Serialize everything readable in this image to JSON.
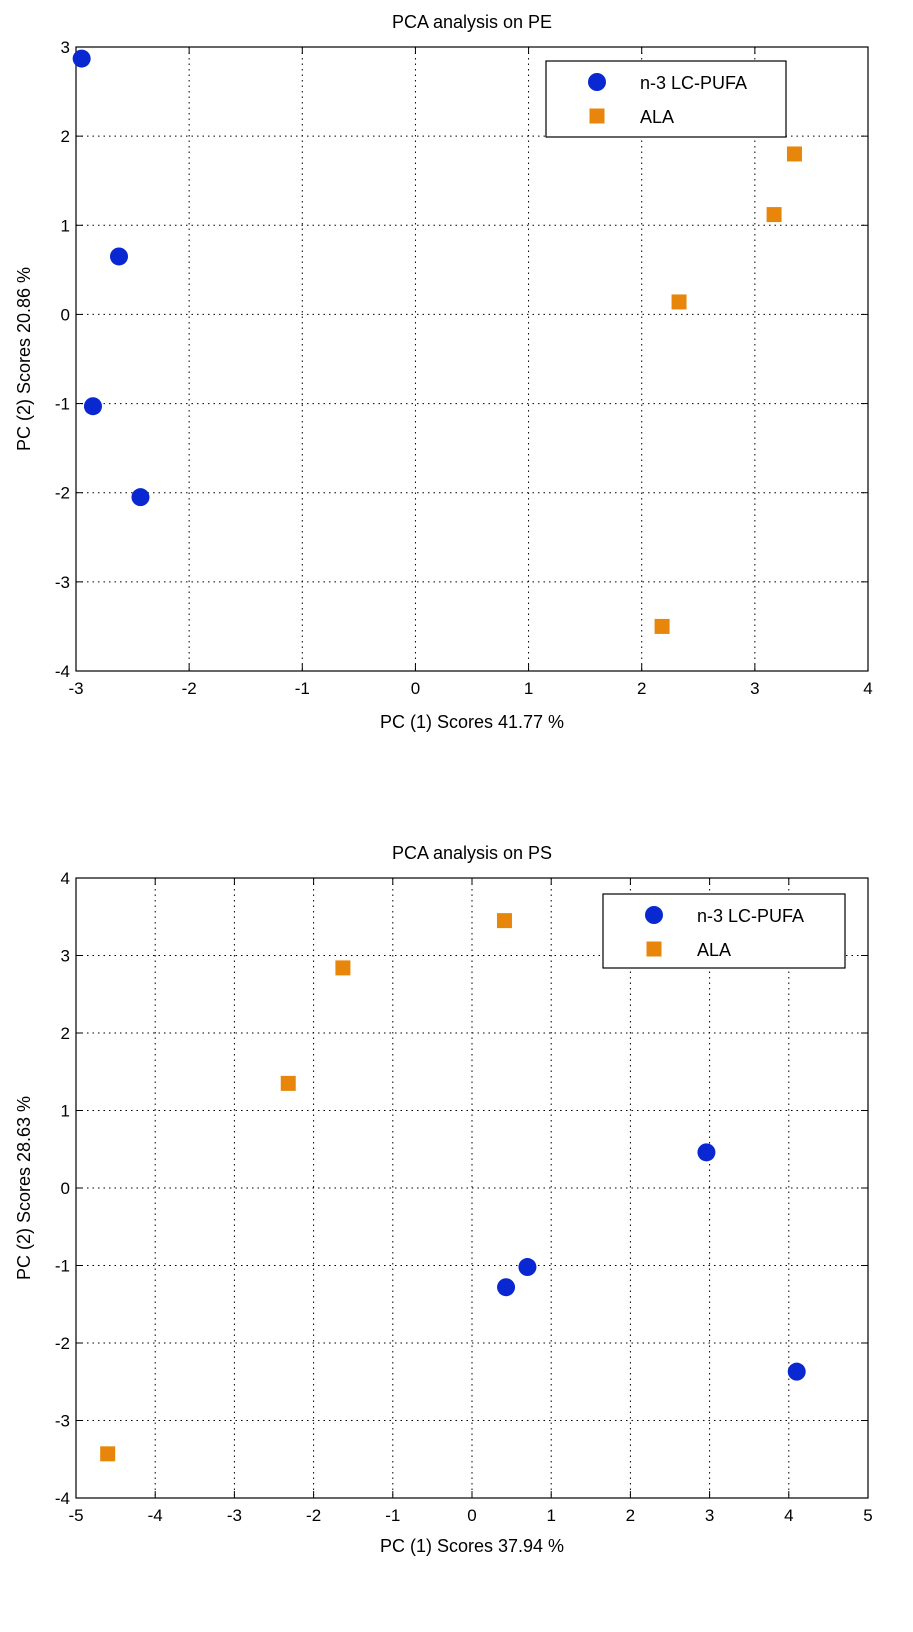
{
  "chart_data": [
    {
      "type": "scatter",
      "title": "PCA analysis on PE",
      "xlabel": "PC (1) Scores 41.77 %",
      "ylabel": "PC (2) Scores 20.86 %",
      "xlim": [
        -3,
        4
      ],
      "ylim": [
        -4,
        3
      ],
      "xticks": [
        -3,
        -2,
        -1,
        0,
        1,
        2,
        3,
        4
      ],
      "yticks": [
        -4,
        -3,
        -2,
        -1,
        0,
        1,
        2,
        3
      ],
      "grid": true,
      "legend_position": "top-right",
      "series": [
        {
          "name": "n-3 LC-PUFA",
          "marker": "circle",
          "color": "#0a28d2",
          "points": [
            [
              -2.95,
              2.87
            ],
            [
              -2.62,
              0.65
            ],
            [
              -2.85,
              -1.03
            ],
            [
              -2.43,
              -2.05
            ]
          ]
        },
        {
          "name": "ALA",
          "marker": "square",
          "color": "#e8860c",
          "points": [
            [
              3.35,
              1.8
            ],
            [
              3.17,
              1.12
            ],
            [
              2.33,
              0.14
            ],
            [
              2.18,
              -3.5
            ]
          ]
        }
      ]
    },
    {
      "type": "scatter",
      "title": "PCA analysis on PS",
      "xlabel": "PC (1) Scores 37.94 %",
      "ylabel": "PC (2) Scores 28.63 %",
      "xlim": [
        -5,
        5
      ],
      "ylim": [
        -4,
        4
      ],
      "xticks": [
        -5,
        -4,
        -3,
        -2,
        -1,
        0,
        1,
        2,
        3,
        4,
        5
      ],
      "yticks": [
        -4,
        -3,
        -2,
        -1,
        0,
        1,
        2,
        3,
        4
      ],
      "grid": true,
      "legend_position": "top-right",
      "series": [
        {
          "name": "n-3 LC-PUFA",
          "marker": "circle",
          "color": "#0a28d2",
          "points": [
            [
              2.96,
              0.46
            ],
            [
              0.7,
              -1.02
            ],
            [
              0.43,
              -1.28
            ],
            [
              4.1,
              -2.37
            ]
          ]
        },
        {
          "name": "ALA",
          "marker": "square",
          "color": "#e8860c",
          "points": [
            [
              0.41,
              3.45
            ],
            [
              -1.63,
              2.84
            ],
            [
              -2.32,
              1.35
            ],
            [
              -4.6,
              -3.43
            ]
          ]
        }
      ]
    }
  ]
}
